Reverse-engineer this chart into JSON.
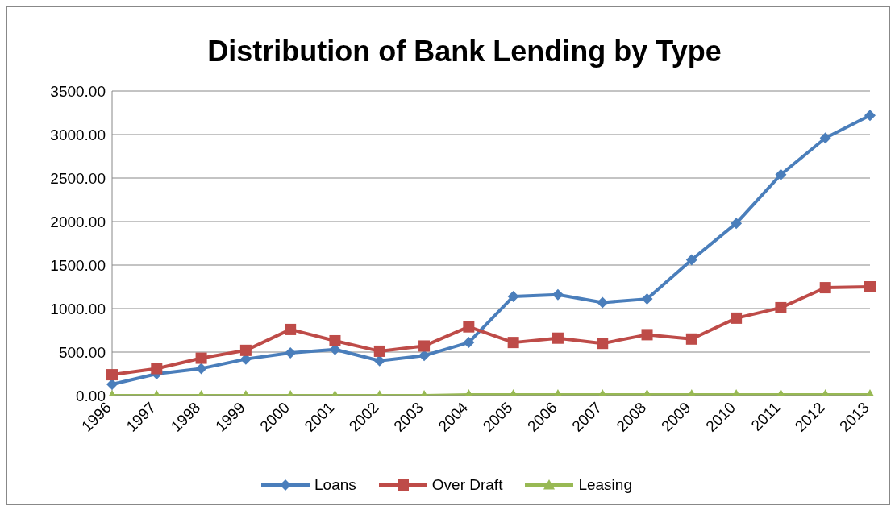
{
  "chart_data": {
    "type": "line",
    "title": "Distribution of Bank Lending by Type",
    "categories": [
      "1996",
      "1997",
      "1998",
      "1999",
      "2000",
      "2001",
      "2002",
      "2003",
      "2004",
      "2005",
      "2006",
      "2007",
      "2008",
      "2009",
      "2010",
      "2011",
      "2012",
      "2013"
    ],
    "series": [
      {
        "name": "Loans",
        "color": "#4a7ebb",
        "marker": "diamond",
        "values": [
          130,
          250,
          310,
          420,
          490,
          530,
          400,
          460,
          610,
          1140,
          1160,
          1070,
          1110,
          1560,
          1980,
          2540,
          2960,
          3220
        ]
      },
      {
        "name": "Over Draft",
        "color": "#be4b48",
        "marker": "square",
        "values": [
          240,
          310,
          430,
          520,
          760,
          630,
          510,
          570,
          790,
          610,
          660,
          600,
          700,
          650,
          890,
          1010,
          1240,
          1250
        ]
      },
      {
        "name": "Leasing",
        "color": "#98b954",
        "marker": "triangle",
        "values": [
          0,
          0,
          0,
          0,
          0,
          0,
          0,
          0,
          10,
          10,
          10,
          10,
          10,
          10,
          10,
          10,
          10,
          10
        ]
      }
    ],
    "ylim": [
      0,
      3500
    ],
    "yticks": [
      {
        "value": 0,
        "label": "0.00"
      },
      {
        "value": 500,
        "label": "500.00"
      },
      {
        "value": 1000,
        "label": "1000.00"
      },
      {
        "value": 1500,
        "label": "1500.00"
      },
      {
        "value": 2000,
        "label": "2000.00"
      },
      {
        "value": 2500,
        "label": "2500.00"
      },
      {
        "value": 3000,
        "label": "3000.00"
      },
      {
        "value": 3500,
        "label": "3500.00"
      }
    ],
    "grid": "y",
    "legend": "bottom",
    "line_style": "solid"
  }
}
